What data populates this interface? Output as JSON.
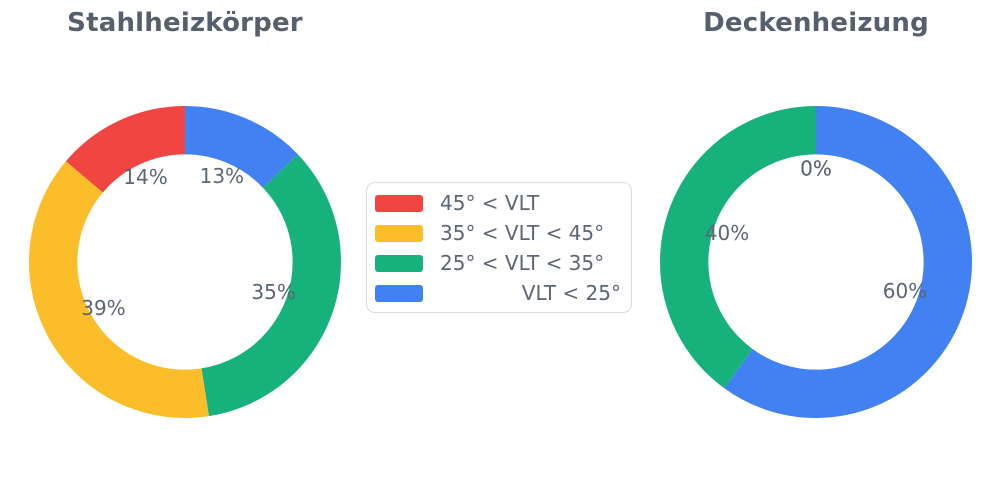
{
  "colors": {
    "red": "#f04540",
    "yellow": "#fbbd2a",
    "green": "#17b17c",
    "blue": "#4181f2",
    "title_text": "#565f6d",
    "label_text": "#5c6674",
    "legend_border": "#d9dce0"
  },
  "chart_data": [
    {
      "type": "pie",
      "subtype": "donut",
      "title": "Stahlheizkörper",
      "start_angle": 90,
      "direction": "counterclockwise",
      "hole_ratio": 0.69,
      "categories": [
        "45° < VLT",
        "35° < VLT < 45°",
        "25° < VLT < 35°",
        "VLT < 25°"
      ],
      "values": [
        14,
        39,
        35,
        13
      ],
      "percent_labels": [
        "14%",
        "39%",
        "35%",
        "13%"
      ],
      "colors": [
        "#f04540",
        "#fbbd2a",
        "#17b17c",
        "#4181f2"
      ]
    },
    {
      "type": "pie",
      "subtype": "donut",
      "title": "Deckenheizung",
      "start_angle": 90,
      "direction": "counterclockwise",
      "hole_ratio": 0.69,
      "categories": [
        "45° < VLT",
        "35° < VLT < 45°",
        "25° < VLT < 35°",
        "VLT < 25°"
      ],
      "values": [
        0,
        0,
        40,
        60
      ],
      "percent_labels": [
        "0%",
        "0%",
        "40%",
        "60%"
      ],
      "colors": [
        "#f04540",
        "#fbbd2a",
        "#17b17c",
        "#4181f2"
      ]
    }
  ],
  "legend": {
    "items": [
      {
        "label": "45° < VLT",
        "color": "#f04540"
      },
      {
        "label": "35° < VLT < 45°",
        "color": "#fbbd2a"
      },
      {
        "label": "25° < VLT < 35°",
        "color": "#17b17c"
      },
      {
        "label": "VLT < 25°",
        "color": "#4181f2"
      }
    ]
  }
}
